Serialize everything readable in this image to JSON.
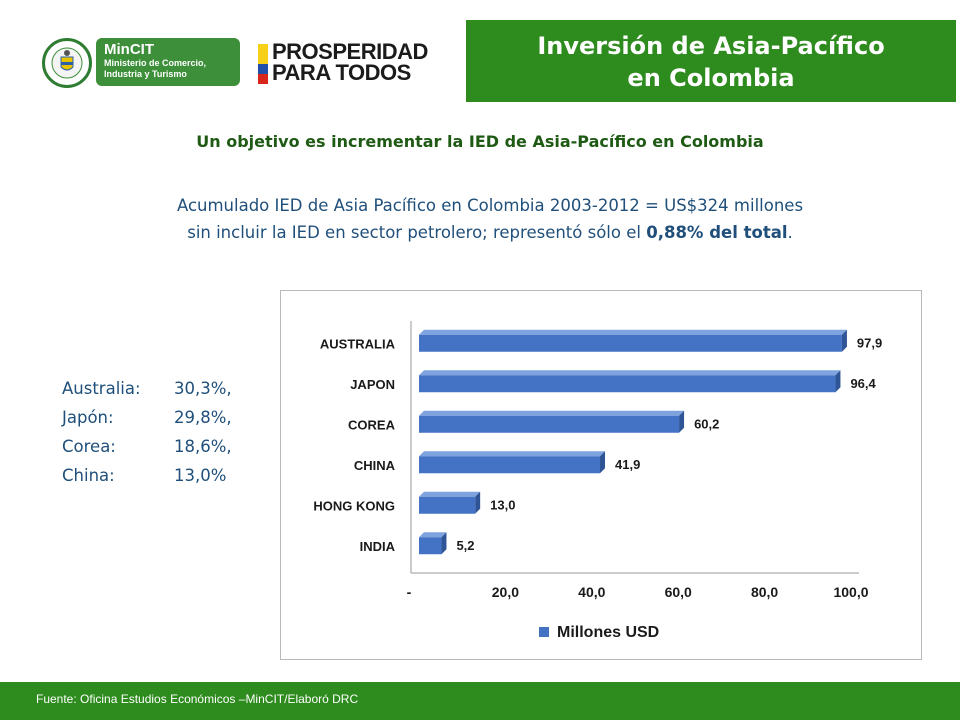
{
  "header": {
    "mincit_name": "MinCIT",
    "mincit_sub_line1": "Ministerio de Comercio,",
    "mincit_sub_line2": "Industria y Turismo",
    "prosperidad_line1": "PROSPERIDAD",
    "prosperidad_line2": "PARA TODOS",
    "title_line1": "Inversión de Asia-Pacífico",
    "title_line2": "en Colombia"
  },
  "subtitle": "Un objetivo es incrementar la IED de Asia-Pacífico en Colombia",
  "paragraph": {
    "line1": "Acumulado IED de Asia Pacífico en Colombia 2003-2012 = US$324 millones",
    "line2_pre": "sin incluir la IED en sector petrolero; representó sólo el ",
    "line2_bold": "0,88% del total",
    "line2_post": "."
  },
  "shares": [
    {
      "name": "Australia:",
      "value": "30,3%,"
    },
    {
      "name": "Japón:",
      "value": "29,8%,"
    },
    {
      "name": "Corea:",
      "value": "18,6%,"
    },
    {
      "name": "China:",
      "value": "13,0%"
    }
  ],
  "colors": {
    "green": "#2e8b1e",
    "bar": "#4472c4",
    "text_blue": "#1f4f7a"
  },
  "chart_data": {
    "type": "bar",
    "orientation": "horizontal",
    "categories": [
      "AUSTRALIA",
      "JAPON",
      "COREA",
      "CHINA",
      "HONG KONG",
      "INDIA"
    ],
    "values": [
      97.9,
      96.4,
      60.2,
      41.9,
      13.0,
      5.2
    ],
    "value_labels": [
      "97,9",
      "96,4",
      "60,2",
      "41,9",
      "13,0",
      "5,2"
    ],
    "x_ticks": [
      "-",
      "20,0",
      "40,0",
      "60,0",
      "80,0",
      "100,0"
    ],
    "xlim": [
      0,
      100
    ],
    "series": [
      {
        "name": "Millones USD",
        "values": [
          97.9,
          96.4,
          60.2,
          41.9,
          13.0,
          5.2
        ]
      }
    ],
    "legend_position": "bottom",
    "grid": false
  },
  "footer": "Fuente: Oficina Estudios Económicos –MinCIT/Elaboró DRC"
}
